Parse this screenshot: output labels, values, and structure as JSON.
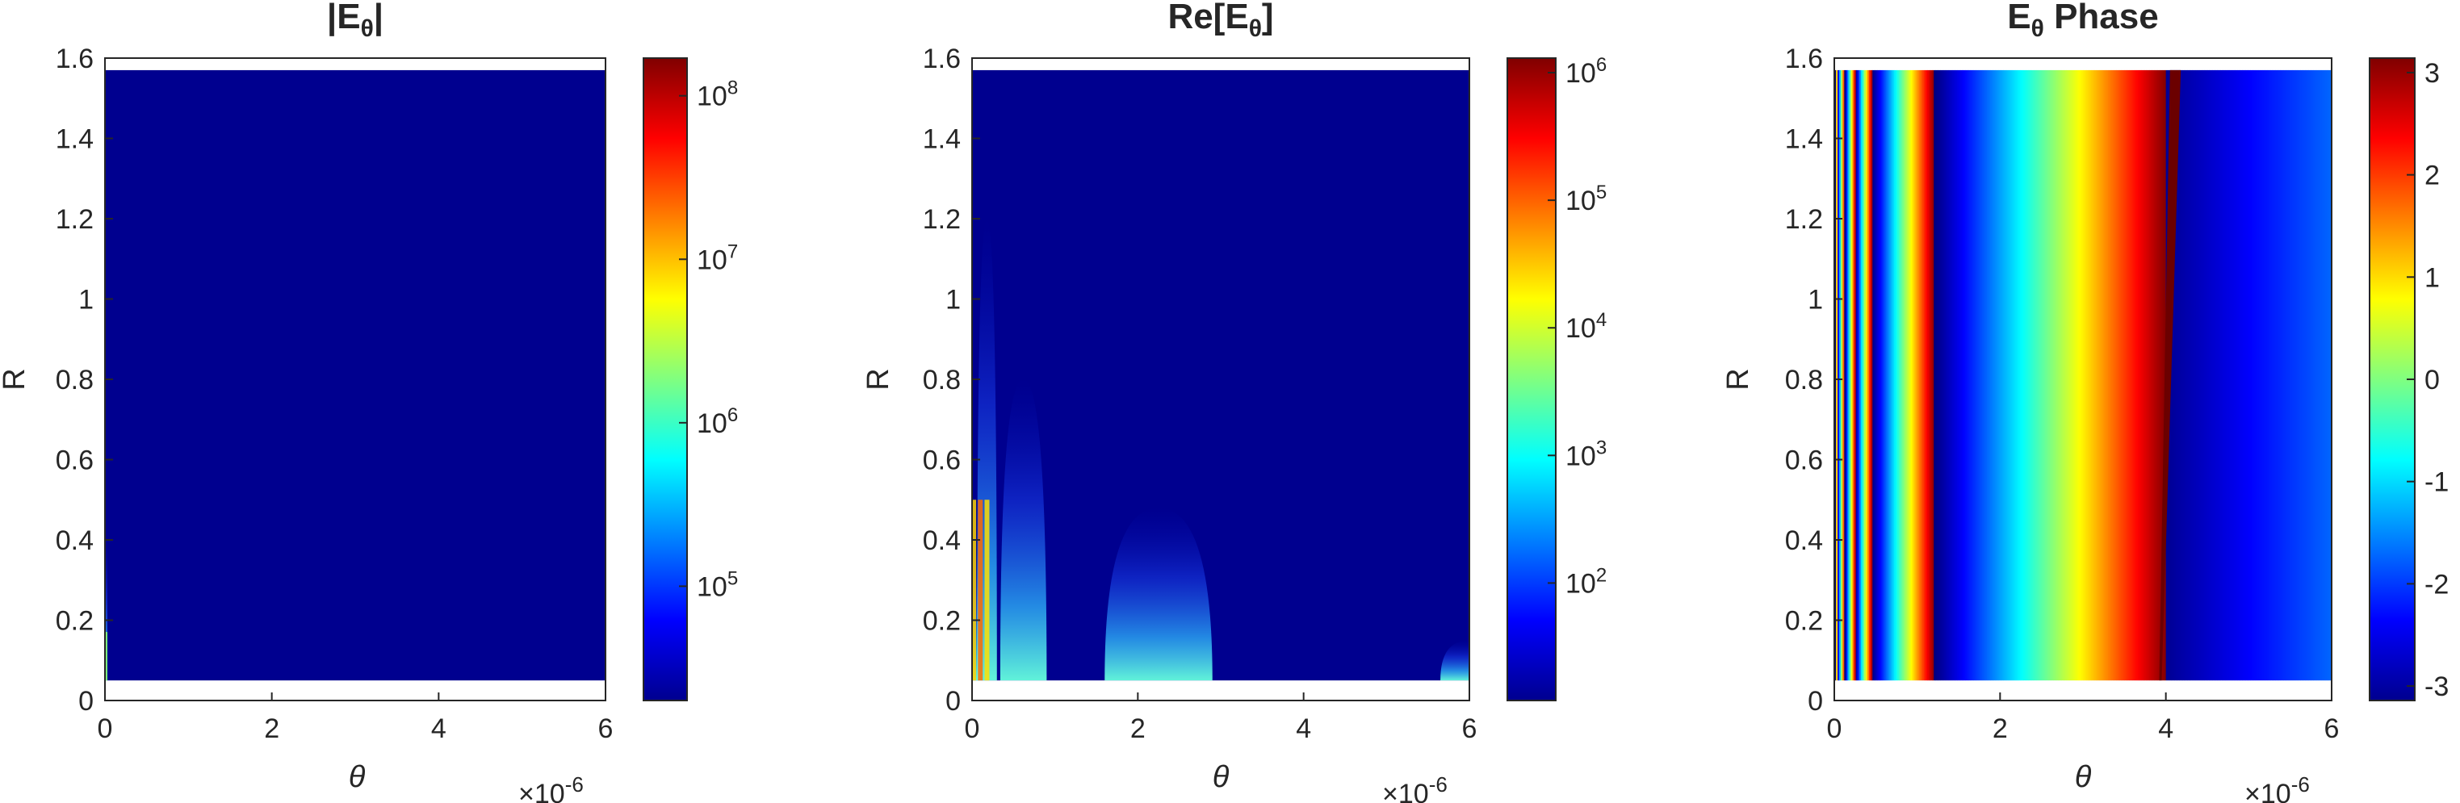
{
  "chart_data": [
    {
      "type": "heatmap",
      "title_main": "|E",
      "title_sub": "θ",
      "title_close": "|",
      "xlabel": "θ",
      "ylabel": "R",
      "x_multiplier_base": "×10",
      "x_multiplier_exp": "-6",
      "xlim": [
        0,
        6
      ],
      "ylim": [
        0,
        1.6
      ],
      "data_extent": {
        "r_min": 0.05,
        "r_max": 1.57,
        "theta_min": 0,
        "theta_max": 6
      },
      "xticks": [
        "0",
        "2",
        "4",
        "6"
      ],
      "yticks": [
        "0",
        "0.2",
        "0.4",
        "0.6",
        "0.8",
        "1",
        "1.2",
        "1.4",
        "1.6"
      ],
      "colorbar": {
        "scale": "log",
        "range": [
          20000,
          170000000
        ],
        "ticks": [
          {
            "value": 100000,
            "base": "10",
            "exp": "5"
          },
          {
            "value": 1000000,
            "base": "10",
            "exp": "6"
          },
          {
            "value": 10000000,
            "base": "10",
            "exp": "7"
          },
          {
            "value": 100000000,
            "base": "10",
            "exp": "8"
          }
        ]
      },
      "colormap": "jet",
      "description_values": {
        "field": "near-zero everywhere except a thin bright strip at θ≈0, R<0.4"
      }
    },
    {
      "type": "heatmap",
      "title_main": "Re[E",
      "title_sub": "θ",
      "title_close": "]",
      "xlabel": "θ",
      "ylabel": "R",
      "x_multiplier_base": "×10",
      "x_multiplier_exp": "-6",
      "xlim": [
        0,
        6
      ],
      "ylim": [
        0,
        1.6
      ],
      "data_extent": {
        "r_min": 0.05,
        "r_max": 1.57,
        "theta_min": 0,
        "theta_max": 6
      },
      "xticks": [
        "0",
        "2",
        "4",
        "6"
      ],
      "yticks": [
        "0",
        "0.2",
        "0.4",
        "0.6",
        "0.8",
        "1",
        "1.2",
        "1.4",
        "1.6"
      ],
      "colorbar": {
        "scale": "log",
        "range": [
          12,
          1300000
        ],
        "ticks": [
          {
            "value": 100,
            "base": "10",
            "exp": "2"
          },
          {
            "value": 1000,
            "base": "10",
            "exp": "3"
          },
          {
            "value": 10000,
            "base": "10",
            "exp": "4"
          },
          {
            "value": 100000,
            "base": "10",
            "exp": "5"
          },
          {
            "value": 1000000,
            "base": "10",
            "exp": "6"
          }
        ]
      },
      "colormap": "jet",
      "lobes": [
        {
          "theta_center": 0.02,
          "theta_halfwidth": 0.08,
          "r_top": 0.4
        },
        {
          "theta_center": 0.18,
          "theta_halfwidth": 0.12,
          "r_top": 1.2
        },
        {
          "theta_center": 0.62,
          "theta_halfwidth": 0.28,
          "r_top": 0.8
        },
        {
          "theta_center": 2.25,
          "theta_halfwidth": 0.65,
          "r_top": 0.48
        },
        {
          "theta_center": 6.0,
          "theta_halfwidth": 0.35,
          "r_top": 0.15
        }
      ]
    },
    {
      "type": "heatmap",
      "title_main": "E",
      "title_sub": "θ",
      "title_close": " Phase",
      "xlabel": "θ",
      "ylabel": "R",
      "x_multiplier_base": "×10",
      "x_multiplier_exp": "-6",
      "xlim": [
        0,
        6
      ],
      "ylim": [
        0,
        1.6
      ],
      "data_extent": {
        "r_min": 0.05,
        "r_max": 1.57,
        "theta_min": 0,
        "theta_max": 6
      },
      "xticks": [
        "0",
        "2",
        "4",
        "6"
      ],
      "yticks": [
        "0",
        "0.2",
        "0.4",
        "0.6",
        "0.8",
        "1",
        "1.2",
        "1.4",
        "1.6"
      ],
      "colorbar": {
        "scale": "linear",
        "range": [
          -3.14159,
          3.14159
        ],
        "ticks": [
          {
            "value": -3,
            "label": "-3"
          },
          {
            "value": -2,
            "label": "-2"
          },
          {
            "value": -1,
            "label": "-1"
          },
          {
            "value": 0,
            "label": "0"
          },
          {
            "value": 1,
            "label": "1"
          },
          {
            "value": 2,
            "label": "2"
          },
          {
            "value": 3,
            "label": "3"
          }
        ]
      },
      "colormap": "jet",
      "phase_wrap_theta": [
        0.03,
        0.12,
        0.25,
        0.45,
        1.2,
        4.0
      ]
    }
  ]
}
